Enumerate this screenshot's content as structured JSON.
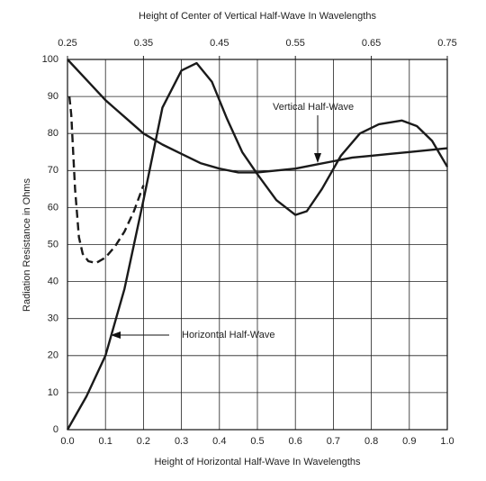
{
  "chart_data": {
    "type": "line",
    "x2label": "Height of Center of Vertical Half-Wave In Wavelengths",
    "xlabel": "Height of Horizontal Half-Wave In Wavelengths",
    "ylabel": "Radiation Resistance in Ohms",
    "xlim": [
      0,
      1
    ],
    "xticks": [
      {
        "value": 0,
        "label": "0.0"
      },
      0.1,
      0.2,
      0.3,
      0.4,
      0.5,
      0.6,
      0.7,
      0.8,
      0.9,
      {
        "value": 1,
        "label": "1.0"
      }
    ],
    "x2lim": [
      0.25,
      0.75
    ],
    "x2ticks": [
      0.25,
      0.35,
      0.45,
      0.55,
      0.65,
      0.75
    ],
    "ylim": [
      0,
      100
    ],
    "yticks": [
      0,
      10,
      20,
      30,
      40,
      50,
      60,
      70,
      80,
      90,
      100
    ],
    "grid": true,
    "series": [
      {
        "name": "Horizontal Half-Wave",
        "color": "#1a1a1a",
        "x": [
          0,
          0.05,
          0.1,
          0.15,
          0.2,
          0.25,
          0.3,
          0.34,
          0.38,
          0.42,
          0.46,
          0.5,
          0.55,
          0.6,
          0.63,
          0.67,
          0.72,
          0.77,
          0.82,
          0.88,
          0.92,
          0.96,
          1.0
        ],
        "values": [
          0,
          9,
          20,
          38,
          62,
          87,
          97,
          99,
          94,
          84,
          75,
          69,
          62,
          58,
          59,
          65,
          74,
          80,
          82.5,
          83.5,
          82,
          78,
          71
        ]
      },
      {
        "color": "#1a1a1a",
        "dashed": true,
        "x": [
          0.005,
          0.01,
          0.015,
          0.02,
          0.03,
          0.04,
          0.055,
          0.075,
          0.1,
          0.125,
          0.15,
          0.175,
          0.2
        ],
        "values": [
          90,
          85,
          75,
          65,
          52,
          47.5,
          45.5,
          45,
          46.5,
          49.5,
          53.5,
          59,
          66
        ]
      },
      {
        "name": "Vertical Half-Wave",
        "color": "#1a1a1a",
        "x": [
          0,
          0.05,
          0.1,
          0.15,
          0.2,
          0.25,
          0.3,
          0.35,
          0.4,
          0.45,
          0.5,
          0.55,
          0.6,
          0.65,
          0.7,
          0.75,
          0.8,
          0.85,
          0.9,
          0.95,
          1.0
        ],
        "values": [
          100,
          94.5,
          89,
          84.5,
          80,
          77,
          74.5,
          72,
          70.5,
          69.5,
          69.5,
          70,
          70.5,
          71.5,
          72.5,
          73.5,
          74,
          74.5,
          75,
          75.5,
          76
        ]
      }
    ]
  }
}
